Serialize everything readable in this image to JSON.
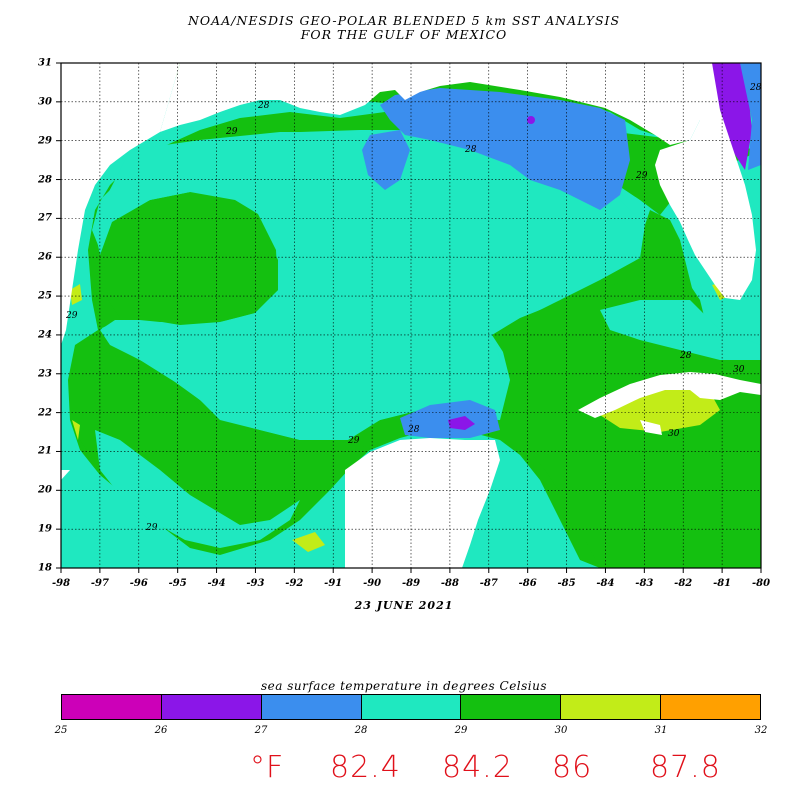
{
  "title_line1": "NOAA/NESDIS GEO-POLAR BLENDED 5 km SST ANALYSIS",
  "title_line2": "FOR THE GULF OF MEXICO",
  "date": "23 JUNE 2021",
  "lon_ticks": [
    "-98",
    "-97",
    "-96",
    "-95",
    "-94",
    "-93",
    "-92",
    "-91",
    "-90",
    "-89",
    "-88",
    "-87",
    "-86",
    "-85",
    "-84",
    "-83",
    "-82",
    "-81",
    "-80"
  ],
  "lat_ticks": [
    "31",
    "30",
    "29",
    "28",
    "27",
    "26",
    "25",
    "24",
    "23",
    "22",
    "21",
    "20",
    "19",
    "18"
  ],
  "contour_labels": [
    "29",
    "28",
    "29",
    "29",
    "29",
    "28",
    "28",
    "28",
    "29",
    "30",
    "28",
    "30"
  ],
  "colorbar": {
    "label": "sea surface temperature in degrees Celsius",
    "ticks": [
      "25",
      "26",
      "27",
      "28",
      "29",
      "30",
      "31",
      "32"
    ],
    "colors": [
      "#cc00b8",
      "#8b16e8",
      "#3b8eee",
      "#1fe8c0",
      "#14c010",
      "#c2ec18",
      "#ffa000"
    ]
  },
  "handwritten": {
    "unit": "°F",
    "values": [
      "82.4",
      "84.2",
      "86",
      "87.8"
    ]
  },
  "colors": {
    "land": "#ffffff",
    "water_27_28": "#3b8eee",
    "water_28_29": "#1fe8c0",
    "water_29_30": "#14c010",
    "water_30_31": "#c2ec18",
    "water_26_27": "#8b16e8",
    "annotation": "#e0101a"
  }
}
